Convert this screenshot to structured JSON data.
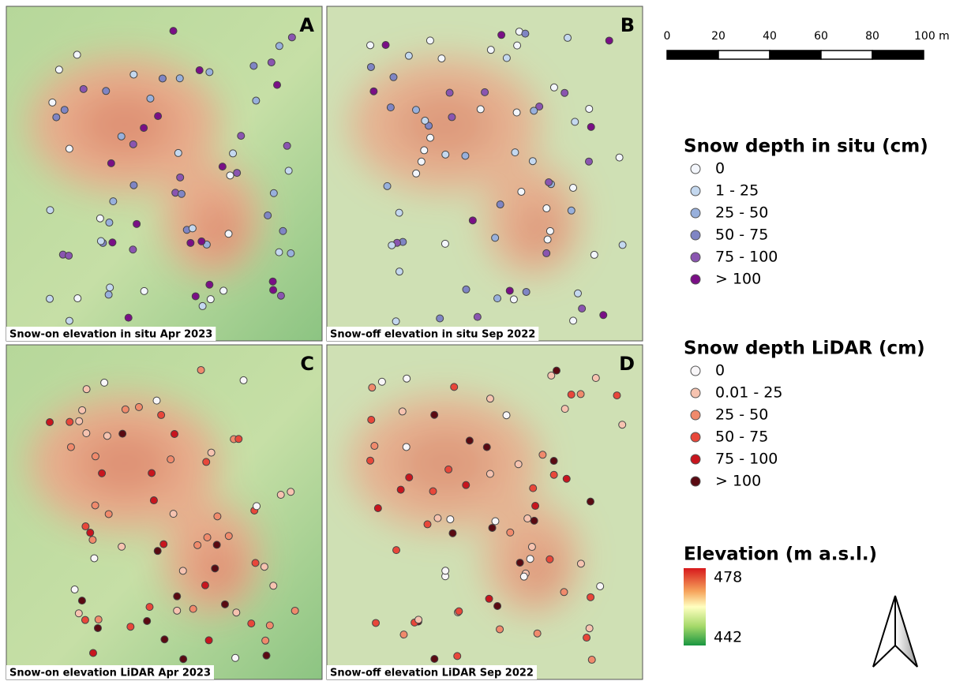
{
  "panels": [
    {
      "letter": "A",
      "caption": "Snow-on elevation in situ Apr 2023"
    },
    {
      "letter": "B",
      "caption": "Snow-off elevation in situ Sep 2022"
    },
    {
      "letter": "C",
      "caption": "Snow-on elevation LiDAR Apr 2023"
    },
    {
      "letter": "D",
      "caption": "Snow-off elevation LiDAR Sep 2022"
    }
  ],
  "scale_bar": {
    "ticks": [
      0,
      20,
      40,
      60,
      80,
      {
        "value": 100,
        "label": "100 m"
      }
    ]
  },
  "legends": [
    {
      "title": "Snow depth in situ (cm)",
      "items": [
        {
          "label": "0",
          "color": "#f3f6fc"
        },
        {
          "label": "1 - 25",
          "color": "#c4d8ef"
        },
        {
          "label": "25 - 50",
          "color": "#98b0dc"
        },
        {
          "label": "50 - 75",
          "color": "#7f85c4"
        },
        {
          "label": "75 - 100",
          "color": "#8a55b0"
        },
        {
          "label": "> 100",
          "color": "#7a0f86"
        }
      ]
    },
    {
      "title": "Snow depth LiDAR (cm)",
      "items": [
        {
          "label": "0",
          "color": "#f8f6f8"
        },
        {
          "label": "0.01 - 25",
          "color": "#f6c3b0"
        },
        {
          "label": "25 - 50",
          "color": "#f08a6c"
        },
        {
          "label": "50 - 75",
          "color": "#e8473a"
        },
        {
          "label": "75 - 100",
          "color": "#c8151e"
        },
        {
          "label": "> 100",
          "color": "#5a0a12"
        }
      ]
    }
  ],
  "elevation": {
    "title": "Elevation (m a.s.l.)",
    "max": 478,
    "min": 442
  }
}
